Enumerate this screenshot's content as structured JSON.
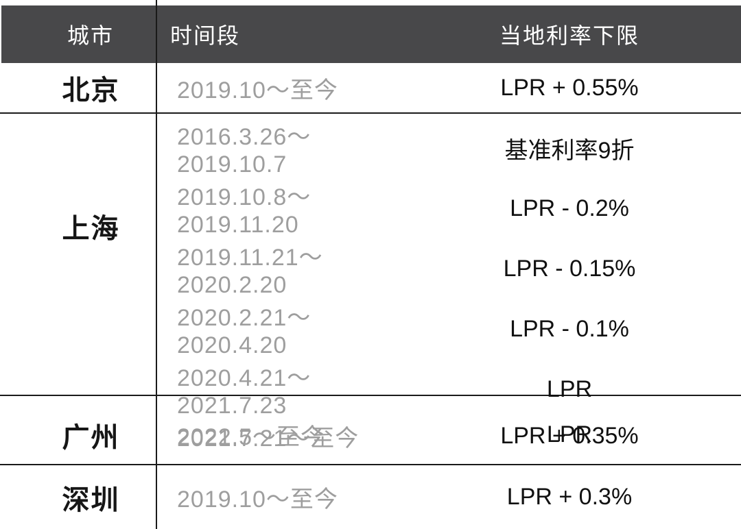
{
  "table": {
    "headers": {
      "city": "城市",
      "period": "时间段",
      "rate": "当地利率下限"
    },
    "groups": [
      {
        "city": "北京",
        "rows": [
          {
            "period": "2019.10～至今",
            "rate": "LPR + 0.55%"
          }
        ]
      },
      {
        "city": "上海",
        "rows": [
          {
            "period": "2016.3.26～2019.10.7",
            "rate": "基准利率9折"
          },
          {
            "period": "2019.10.8～2019.11.20",
            "rate": "LPR - 0.2%"
          },
          {
            "period": "2019.11.21～2020.2.20",
            "rate": "LPR - 0.15%"
          },
          {
            "period": "2020.2.21～2020.4.20",
            "rate": "LPR - 0.1%"
          },
          {
            "period": "2020.4.21～2021.7.23",
            "rate": "LPR"
          },
          {
            "period": "2021.7.21～至今",
            "rate": "LPR + 0.35%"
          }
        ]
      },
      {
        "city": "广州",
        "rows": [
          {
            "period": "2022.5～至今",
            "rate": "LPR"
          }
        ]
      },
      {
        "city": "深圳",
        "rows": [
          {
            "period": "2019.10～至今",
            "rate": "LPR + 0.3%"
          }
        ]
      }
    ],
    "colors": {
      "header_bg": "#48484a",
      "header_text": "#ffffff",
      "city_text": "#161616",
      "period_text": "#9e9e9e",
      "rate_text": "#111111",
      "grid_line": "#1a1a1a",
      "background": "#ffffff"
    }
  }
}
